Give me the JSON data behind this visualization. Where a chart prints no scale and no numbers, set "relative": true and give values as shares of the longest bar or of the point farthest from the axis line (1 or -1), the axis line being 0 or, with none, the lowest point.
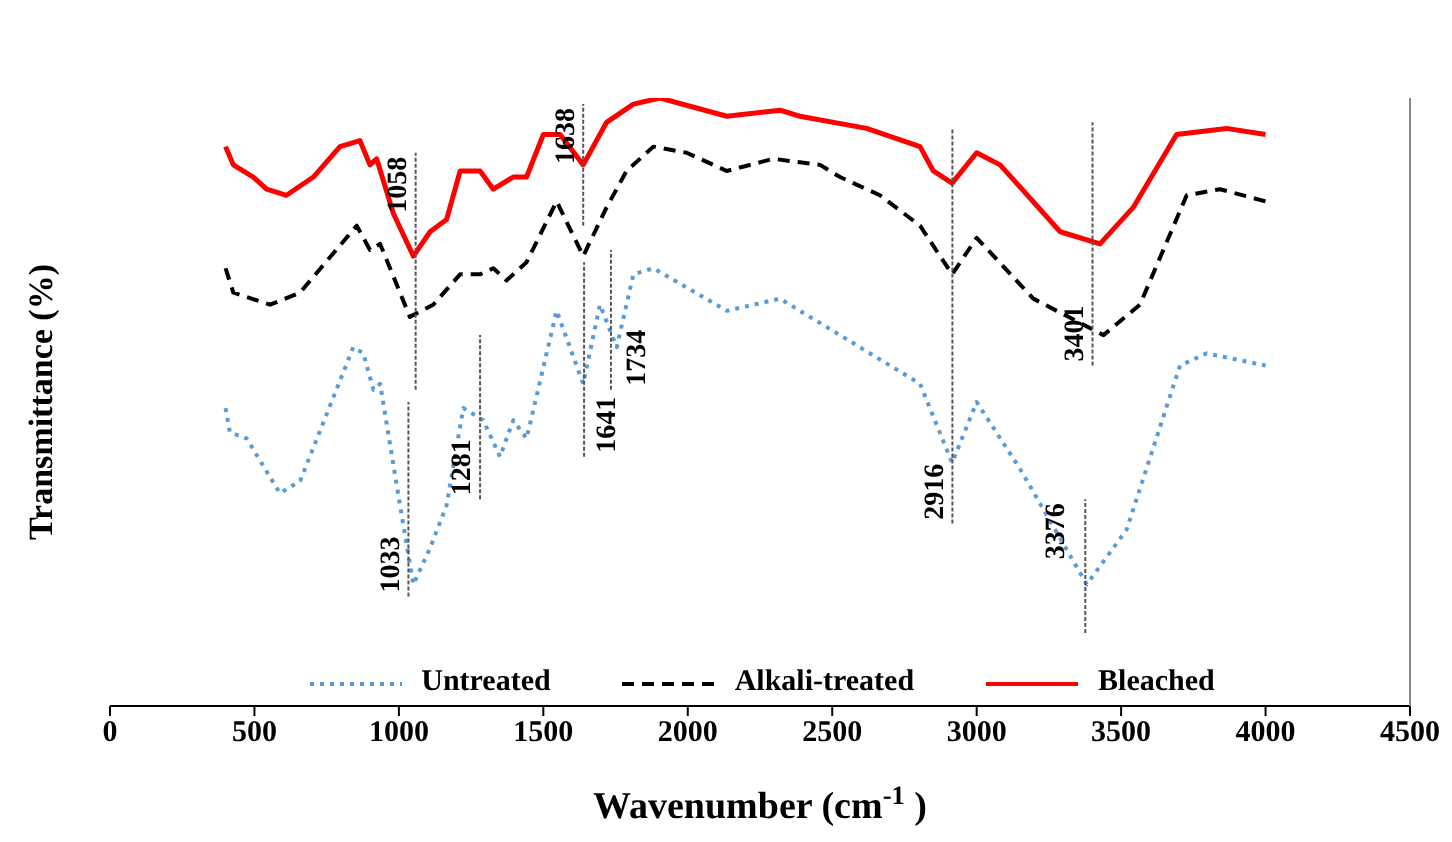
{
  "chart_data": {
    "type": "line",
    "relative": true,
    "xlabel": "Wavenumber (cm$^{-1}$)",
    "ylabel": "Transmittance (%)",
    "xlim": [
      0,
      4500
    ],
    "xticks": [
      0,
      500,
      1000,
      1500,
      2000,
      2500,
      3000,
      3500,
      4000,
      4500
    ],
    "grid": false,
    "legend": "bottom",
    "marker": "none",
    "series": [
      {
        "name": "Untreated",
        "color": "#5b9bd5",
        "line_style": "dotted",
        "x": [
          400,
          415,
          473,
          588,
          658,
          842,
          877,
          912,
          935,
          1004,
          1050,
          1108,
          1165,
          1223,
          1292,
          1350,
          1396,
          1442,
          1546,
          1638,
          1696,
          1754,
          1812,
          1881,
          2135,
          2319,
          2388,
          2596,
          2804,
          2915,
          3000,
          3150,
          3381,
          3519,
          3704,
          3796,
          4000
        ],
        "values": [
          0.49,
          0.45,
          0.44,
          0.35,
          0.37,
          0.59,
          0.58,
          0.52,
          0.53,
          0.33,
          0.2,
          0.26,
          0.33,
          0.49,
          0.47,
          0.41,
          0.47,
          0.44,
          0.65,
          0.53,
          0.66,
          0.59,
          0.71,
          0.72,
          0.65,
          0.67,
          0.65,
          0.59,
          0.53,
          0.4,
          0.5,
          0.39,
          0.2,
          0.29,
          0.56,
          0.58,
          0.56
        ]
      },
      {
        "name": "Alkali-treated",
        "color": "#000000",
        "line_style": "dashed",
        "x": [
          400,
          427,
          554,
          658,
          854,
          900,
          935,
          1038,
          1119,
          1212,
          1281,
          1327,
          1373,
          1442,
          1546,
          1638,
          1719,
          1788,
          1881,
          1996,
          2135,
          2296,
          2458,
          2527,
          2665,
          2804,
          2915,
          3000,
          3196,
          3439,
          3565,
          3727,
          3842,
          4000
        ],
        "values": [
          0.72,
          0.68,
          0.66,
          0.68,
          0.79,
          0.75,
          0.76,
          0.64,
          0.66,
          0.71,
          0.71,
          0.72,
          0.7,
          0.73,
          0.83,
          0.74,
          0.82,
          0.88,
          0.92,
          0.91,
          0.88,
          0.9,
          0.89,
          0.87,
          0.84,
          0.79,
          0.71,
          0.77,
          0.67,
          0.61,
          0.66,
          0.84,
          0.85,
          0.83
        ]
      },
      {
        "name": "Bleached",
        "color": "#ff0000",
        "line_style": "solid",
        "x": [
          400,
          427,
          496,
          542,
          611,
          704,
          796,
          865,
          900,
          923,
          981,
          1050,
          1108,
          1165,
          1212,
          1281,
          1327,
          1396,
          1442,
          1500,
          1558,
          1638,
          1719,
          1812,
          1904,
          2135,
          2319,
          2388,
          2619,
          2804,
          2850,
          2915,
          3000,
          3081,
          3289,
          3427,
          3542,
          3692,
          3865,
          4000
        ],
        "values": [
          0.92,
          0.89,
          0.87,
          0.85,
          0.84,
          0.87,
          0.92,
          0.93,
          0.89,
          0.9,
          0.81,
          0.74,
          0.78,
          0.8,
          0.88,
          0.88,
          0.85,
          0.87,
          0.87,
          0.94,
          0.94,
          0.89,
          0.96,
          0.99,
          1,
          0.97,
          0.98,
          0.97,
          0.95,
          0.92,
          0.88,
          0.86,
          0.91,
          0.89,
          0.78,
          0.76,
          0.82,
          0.94,
          0.95,
          0.94
        ]
      }
    ],
    "annotations": [
      {
        "text": "1058",
        "x": 1058,
        "y": 0.74
      },
      {
        "text": "1638",
        "x": 1638,
        "y": 0.89
      },
      {
        "text": "1033",
        "x": 1033,
        "y": 0.2
      },
      {
        "text": "1281",
        "x": 1281,
        "y": 0.47
      },
      {
        "text": "1641",
        "x": 1641,
        "y": 0.53
      },
      {
        "text": "1734",
        "x": 1734,
        "y": 0.6
      },
      {
        "text": "2916",
        "x": 2916,
        "y": 0.4
      },
      {
        "text": "3401",
        "x": 3401,
        "y": 0.61
      },
      {
        "text": "3376",
        "x": 3376,
        "y": 0.2
      }
    ]
  }
}
